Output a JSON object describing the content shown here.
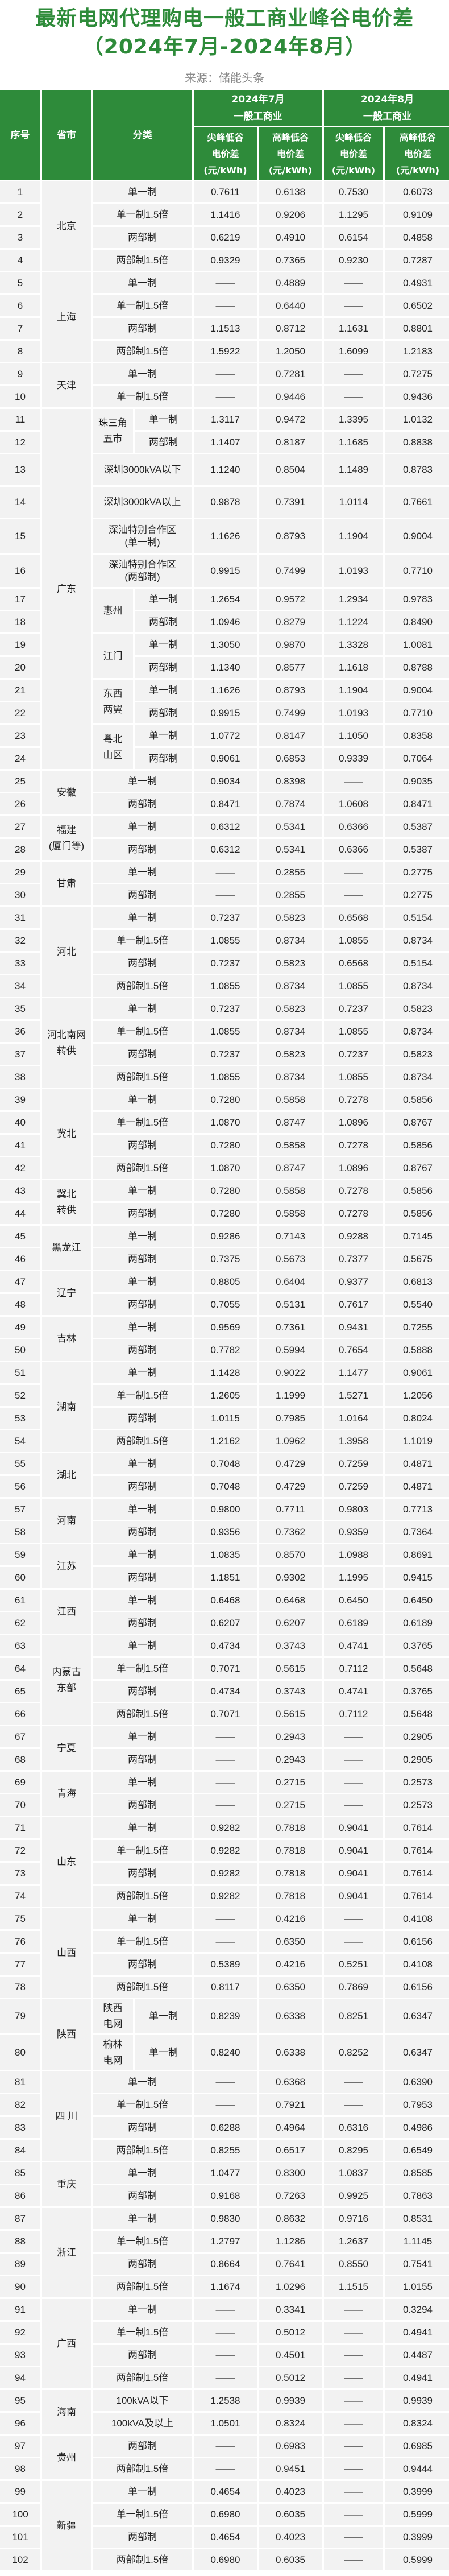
{
  "title_line1": "最新电网代理购电一般工商业峰谷电价差",
  "title_line2": "（2024年7月-2024年8月）",
  "source": "来源：储能头条",
  "header": {
    "seq": "序号",
    "province": "省市",
    "category": "分类",
    "month1": "2024年7月\n一般工商业",
    "month2": "2024年8月\n一般工商业",
    "peak_valley": "尖峰低谷\n电价差\n(元/kWh)",
    "high_valley": "高峰低谷\n电价差\n(元/kWh)"
  },
  "colors": {
    "header_bg": "#2e8b3a",
    "title": "#2e8b3a",
    "cell_bg": "#f2f2f2"
  },
  "columns_note_order": [
    "序号",
    "省市",
    "分类",
    "2024年7月尖峰低谷",
    "2024年7月高峰低谷",
    "2024年8月尖峰低谷",
    "2024年8月高峰低谷"
  ],
  "groups": [
    {
      "province": "北京",
      "rows": [
        [
          "1",
          "",
          "单一制",
          "0.7611",
          "0.6138",
          "0.7530",
          "0.6073"
        ],
        [
          "2",
          "",
          "单一制1.5倍",
          "1.1416",
          "0.9206",
          "1.1295",
          "0.9109"
        ],
        [
          "3",
          "",
          "两部制",
          "0.6219",
          "0.4910",
          "0.6154",
          "0.4858"
        ],
        [
          "4",
          "",
          "两部制1.5倍",
          "0.9329",
          "0.7365",
          "0.9230",
          "0.7287"
        ]
      ]
    },
    {
      "province": "上海",
      "rows": [
        [
          "5",
          "",
          "单一制",
          "——",
          "0.4889",
          "——",
          "0.4931"
        ],
        [
          "6",
          "",
          "单一制1.5倍",
          "——",
          "0.6440",
          "——",
          "0.6502"
        ],
        [
          "7",
          "",
          "两部制",
          "1.1513",
          "0.8712",
          "1.1631",
          "0.8801"
        ],
        [
          "8",
          "",
          "两部制1.5倍",
          "1.5922",
          "1.2050",
          "1.6099",
          "1.2183"
        ]
      ]
    },
    {
      "province": "天津",
      "rows": [
        [
          "9",
          "",
          "单一制",
          "——",
          "0.7281",
          "——",
          "0.7275"
        ],
        [
          "10",
          "",
          "单一制1.5倍",
          "——",
          "0.9446",
          "——",
          "0.9436"
        ]
      ]
    },
    {
      "province": "广东",
      "rows": [
        [
          "11",
          "珠三角\n五市",
          "单一制",
          "1.3117",
          "0.9472",
          "1.3395",
          "1.0132"
        ],
        [
          "12",
          "珠三角\n五市",
          "两部制",
          "1.1407",
          "0.8187",
          "1.1685",
          "0.8838"
        ],
        [
          "13",
          "",
          "深圳3000kVA以下",
          "1.1240",
          "0.8504",
          "1.1489",
          "0.8783"
        ],
        [
          "14",
          "",
          "深圳3000kVA以上",
          "0.9878",
          "0.7391",
          "1.0114",
          "0.7661"
        ],
        [
          "15",
          "",
          "深汕特别合作区\n(单一制)",
          "1.1626",
          "0.8793",
          "1.1904",
          "0.9004"
        ],
        [
          "16",
          "",
          "深汕特别合作区\n(两部制)",
          "0.9915",
          "0.7499",
          "1.0193",
          "0.7710"
        ],
        [
          "17",
          "惠州",
          "单一制",
          "1.2654",
          "0.9572",
          "1.2934",
          "0.9783"
        ],
        [
          "18",
          "惠州",
          "两部制",
          "1.0946",
          "0.8279",
          "1.1224",
          "0.8490"
        ],
        [
          "19",
          "江门",
          "单一制",
          "1.3050",
          "0.9870",
          "1.3328",
          "1.0081"
        ],
        [
          "20",
          "江门",
          "两部制",
          "1.1340",
          "0.8577",
          "1.1618",
          "0.8788"
        ],
        [
          "21",
          "东西\n两翼",
          "单一制",
          "1.1626",
          "0.8793",
          "1.1904",
          "0.9004"
        ],
        [
          "22",
          "东西\n两翼",
          "两部制",
          "0.9915",
          "0.7499",
          "1.0193",
          "0.7710"
        ],
        [
          "23",
          "粤北\n山区",
          "单一制",
          "1.0772",
          "0.8147",
          "1.1050",
          "0.8358"
        ],
        [
          "24",
          "粤北\n山区",
          "两部制",
          "0.9061",
          "0.6853",
          "0.9339",
          "0.7064"
        ]
      ]
    },
    {
      "province": "安徽",
      "rows": [
        [
          "25",
          "",
          "单一制",
          "0.9034",
          "0.8398",
          "——",
          "0.9035"
        ],
        [
          "26",
          "",
          "两部制",
          "0.8471",
          "0.7874",
          "1.0608",
          "0.8471"
        ]
      ]
    },
    {
      "province": "福建\n(厦门等)",
      "rows": [
        [
          "27",
          "",
          "单一制",
          "0.6312",
          "0.5341",
          "0.6366",
          "0.5387"
        ],
        [
          "28",
          "",
          "两部制",
          "0.6312",
          "0.5341",
          "0.6366",
          "0.5387"
        ]
      ]
    },
    {
      "province": "甘肃",
      "rows": [
        [
          "29",
          "",
          "单一制",
          "——",
          "0.2855",
          "——",
          "0.2775"
        ],
        [
          "30",
          "",
          "两部制",
          "——",
          "0.2855",
          "——",
          "0.2775"
        ]
      ]
    },
    {
      "province": "河北",
      "rows": [
        [
          "31",
          "",
          "单一制",
          "0.7237",
          "0.5823",
          "0.6568",
          "0.5154"
        ],
        [
          "32",
          "",
          "单一制1.5倍",
          "1.0855",
          "0.8734",
          "1.0855",
          "0.8734"
        ],
        [
          "33",
          "",
          "两部制",
          "0.7237",
          "0.5823",
          "0.6568",
          "0.5154"
        ],
        [
          "34",
          "",
          "两部制1.5倍",
          "1.0855",
          "0.8734",
          "1.0855",
          "0.8734"
        ]
      ]
    },
    {
      "province": "河北南网\n转供",
      "rows": [
        [
          "35",
          "",
          "单一制",
          "0.7237",
          "0.5823",
          "0.7237",
          "0.5823"
        ],
        [
          "36",
          "",
          "单一制1.5倍",
          "1.0855",
          "0.8734",
          "1.0855",
          "0.8734"
        ],
        [
          "37",
          "",
          "两部制",
          "0.7237",
          "0.5823",
          "0.7237",
          "0.5823"
        ],
        [
          "38",
          "",
          "两部制1.5倍",
          "1.0855",
          "0.8734",
          "1.0855",
          "0.8734"
        ]
      ]
    },
    {
      "province": "冀北",
      "rows": [
        [
          "39",
          "",
          "单一制",
          "0.7280",
          "0.5858",
          "0.7278",
          "0.5856"
        ],
        [
          "40",
          "",
          "单一制1.5倍",
          "1.0870",
          "0.8747",
          "1.0896",
          "0.8767"
        ],
        [
          "41",
          "",
          "两部制",
          "0.7280",
          "0.5858",
          "0.7278",
          "0.5856"
        ],
        [
          "42",
          "",
          "两部制1.5倍",
          "1.0870",
          "0.8747",
          "1.0896",
          "0.8767"
        ]
      ]
    },
    {
      "province": "冀北\n转供",
      "rows": [
        [
          "43",
          "",
          "单一制",
          "0.7280",
          "0.5858",
          "0.7278",
          "0.5856"
        ],
        [
          "44",
          "",
          "两部制",
          "0.7280",
          "0.5858",
          "0.7278",
          "0.5856"
        ]
      ]
    },
    {
      "province": "黑龙江",
      "rows": [
        [
          "45",
          "",
          "单一制",
          "0.9286",
          "0.7143",
          "0.9288",
          "0.7145"
        ],
        [
          "46",
          "",
          "两部制",
          "0.7375",
          "0.5673",
          "0.7377",
          "0.5675"
        ]
      ]
    },
    {
      "province": "辽宁",
      "rows": [
        [
          "47",
          "",
          "单一制",
          "0.8805",
          "0.6404",
          "0.9377",
          "0.6813"
        ],
        [
          "48",
          "",
          "两部制",
          "0.7055",
          "0.5131",
          "0.7617",
          "0.5540"
        ]
      ]
    },
    {
      "province": "吉林",
      "rows": [
        [
          "49",
          "",
          "单一制",
          "0.9569",
          "0.7361",
          "0.9431",
          "0.7255"
        ],
        [
          "50",
          "",
          "两部制",
          "0.7782",
          "0.5994",
          "0.7654",
          "0.5888"
        ]
      ]
    },
    {
      "province": "湖南",
      "rows": [
        [
          "51",
          "",
          "单一制",
          "1.1428",
          "0.9022",
          "1.1477",
          "0.9061"
        ],
        [
          "52",
          "",
          "单一制1.5倍",
          "1.2605",
          "1.1999",
          "1.5271",
          "1.2056"
        ],
        [
          "53",
          "",
          "两部制",
          "1.0115",
          "0.7985",
          "1.0164",
          "0.8024"
        ],
        [
          "54",
          "",
          "两部制1.5倍",
          "1.2162",
          "1.0962",
          "1.3958",
          "1.1019"
        ]
      ]
    },
    {
      "province": "湖北",
      "rows": [
        [
          "55",
          "",
          "单一制",
          "0.7048",
          "0.4729",
          "0.7259",
          "0.4871"
        ],
        [
          "56",
          "",
          "两部制",
          "0.7048",
          "0.4729",
          "0.7259",
          "0.4871"
        ]
      ]
    },
    {
      "province": "河南",
      "rows": [
        [
          "57",
          "",
          "单一制",
          "0.9800",
          "0.7711",
          "0.9803",
          "0.7713"
        ],
        [
          "58",
          "",
          "两部制",
          "0.9356",
          "0.7362",
          "0.9359",
          "0.7364"
        ]
      ]
    },
    {
      "province": "江苏",
      "rows": [
        [
          "59",
          "",
          "单一制",
          "1.0835",
          "0.8570",
          "1.0988",
          "0.8691"
        ],
        [
          "60",
          "",
          "两部制",
          "1.1851",
          "0.9302",
          "1.1995",
          "0.9415"
        ]
      ]
    },
    {
      "province": "江西",
      "rows": [
        [
          "61",
          "",
          "单一制",
          "0.6468",
          "0.6468",
          "0.6450",
          "0.6450"
        ],
        [
          "62",
          "",
          "两部制",
          "0.6207",
          "0.6207",
          "0.6189",
          "0.6189"
        ]
      ]
    },
    {
      "province": "内蒙古\n东部",
      "rows": [
        [
          "63",
          "",
          "单一制",
          "0.4734",
          "0.3743",
          "0.4741",
          "0.3765"
        ],
        [
          "64",
          "",
          "单一制1.5倍",
          "0.7071",
          "0.5615",
          "0.7112",
          "0.5648"
        ],
        [
          "65",
          "",
          "两部制",
          "0.4734",
          "0.3743",
          "0.4741",
          "0.3765"
        ],
        [
          "66",
          "",
          "两部制1.5倍",
          "0.7071",
          "0.5615",
          "0.7112",
          "0.5648"
        ]
      ]
    },
    {
      "province": "宁夏",
      "rows": [
        [
          "67",
          "",
          "单一制",
          "——",
          "0.2943",
          "——",
          "0.2905"
        ],
        [
          "68",
          "",
          "两部制",
          "——",
          "0.2943",
          "——",
          "0.2905"
        ]
      ]
    },
    {
      "province": "青海",
      "rows": [
        [
          "69",
          "",
          "单一制",
          "——",
          "0.2715",
          "——",
          "0.2573"
        ],
        [
          "70",
          "",
          "两部制",
          "——",
          "0.2715",
          "——",
          "0.2573"
        ]
      ]
    },
    {
      "province": "山东",
      "rows": [
        [
          "71",
          "",
          "单一制",
          "0.9282",
          "0.7818",
          "0.9041",
          "0.7614"
        ],
        [
          "72",
          "",
          "单一制1.5倍",
          "0.9282",
          "0.7818",
          "0.9041",
          "0.7614"
        ],
        [
          "73",
          "",
          "两部制",
          "0.9282",
          "0.7818",
          "0.9041",
          "0.7614"
        ],
        [
          "74",
          "",
          "两部制1.5倍",
          "0.9282",
          "0.7818",
          "0.9041",
          "0.7614"
        ]
      ]
    },
    {
      "province": "山西",
      "rows": [
        [
          "75",
          "",
          "单一制",
          "——",
          "0.4216",
          "——",
          "0.4108"
        ],
        [
          "76",
          "",
          "单一制1.5倍",
          "——",
          "0.6350",
          "——",
          "0.6156"
        ],
        [
          "77",
          "",
          "两部制",
          "0.5389",
          "0.4216",
          "0.5251",
          "0.4108"
        ],
        [
          "78",
          "",
          "两部制1.5倍",
          "0.8117",
          "0.6350",
          "0.7869",
          "0.6156"
        ]
      ]
    },
    {
      "province": "陕西",
      "rows": [
        [
          "79",
          "陕西\n电网",
          "单一制",
          "0.8239",
          "0.6338",
          "0.8251",
          "0.6347"
        ],
        [
          "80",
          "榆林\n电网",
          "单一制",
          "0.8240",
          "0.6338",
          "0.8252",
          "0.6347"
        ]
      ]
    },
    {
      "province": "四 川",
      "rows": [
        [
          "81",
          "",
          "单一制",
          "——",
          "0.6368",
          "——",
          "0.6390"
        ],
        [
          "82",
          "",
          "单一制1.5倍",
          "——",
          "0.7921",
          "——",
          "0.7953"
        ],
        [
          "83",
          "",
          "两部制",
          "0.6288",
          "0.4964",
          "0.6316",
          "0.4986"
        ],
        [
          "84",
          "",
          "两部制1.5倍",
          "0.8255",
          "0.6517",
          "0.8295",
          "0.6549"
        ]
      ]
    },
    {
      "province": "重庆",
      "rows": [
        [
          "85",
          "",
          "单一制",
          "1.0477",
          "0.8300",
          "1.0837",
          "0.8585"
        ],
        [
          "86",
          "",
          "两部制",
          "0.9168",
          "0.7263",
          "0.9925",
          "0.7863"
        ]
      ]
    },
    {
      "province": "浙江",
      "rows": [
        [
          "87",
          "",
          "单一制",
          "0.9830",
          "0.8632",
          "0.9716",
          "0.8531"
        ],
        [
          "88",
          "",
          "单一制1.5倍",
          "1.2797",
          "1.1286",
          "1.2637",
          "1.1145"
        ],
        [
          "89",
          "",
          "两部制",
          "0.8664",
          "0.7641",
          "0.8550",
          "0.7541"
        ],
        [
          "90",
          "",
          "两部制1.5倍",
          "1.1674",
          "1.0296",
          "1.1515",
          "1.0155"
        ]
      ]
    },
    {
      "province": "广西",
      "rows": [
        [
          "91",
          "",
          "单一制",
          "——",
          "0.3341",
          "——",
          "0.3294"
        ],
        [
          "92",
          "",
          "单一制1.5倍",
          "——",
          "0.5012",
          "——",
          "0.4941"
        ],
        [
          "93",
          "",
          "两部制",
          "——",
          "0.4501",
          "——",
          "0.4487"
        ],
        [
          "94",
          "",
          "两部制1.5倍",
          "——",
          "0.5012",
          "——",
          "0.4941"
        ]
      ]
    },
    {
      "province": "海南",
      "rows": [
        [
          "95",
          "",
          "100kVA以下",
          "1.2538",
          "0.9939",
          "——",
          "0.9939"
        ],
        [
          "96",
          "",
          "100kVA及以上",
          "1.0501",
          "0.8324",
          "——",
          "0.8324"
        ]
      ]
    },
    {
      "province": "贵州",
      "rows": [
        [
          "97",
          "",
          "两部制",
          "——",
          "0.6983",
          "——",
          "0.6985"
        ],
        [
          "98",
          "",
          "两部制1.5倍",
          "——",
          "0.9451",
          "——",
          "0.9444"
        ]
      ]
    },
    {
      "province": "新疆",
      "rows": [
        [
          "99",
          "",
          "单一制",
          "0.4654",
          "0.4023",
          "——",
          "0.3999"
        ],
        [
          "100",
          "",
          "单一制1.5倍",
          "0.6980",
          "0.6035",
          "——",
          "0.5999"
        ],
        [
          "101",
          "",
          "两部制",
          "0.4654",
          "0.4023",
          "——",
          "0.3999"
        ],
        [
          "102",
          "",
          "两部制1.5倍",
          "0.6980",
          "0.6035",
          "——",
          "0.5999"
        ]
      ]
    }
  ]
}
